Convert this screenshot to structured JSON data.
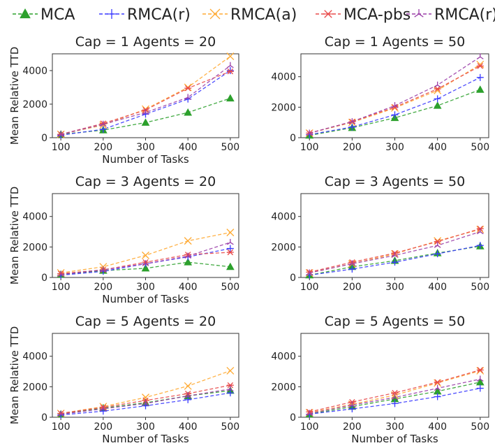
{
  "legend": [
    {
      "name": "MCA",
      "color": "#2ca02c",
      "marker": "triangle"
    },
    {
      "name": "RMCA(r)",
      "color": "#3b3bff",
      "marker": "plus"
    },
    {
      "name": "RMCA(a)",
      "color": "#ffaa33",
      "marker": "x"
    },
    {
      "name": "MCA-pbs",
      "color": "#e84a4a",
      "marker": "star"
    },
    {
      "name": "RMCA(r)-pbs",
      "color": "#9b3fa8",
      "marker": "tri"
    }
  ],
  "chart_data": [
    {
      "type": "line",
      "title": "Cap = 1 Agents = 20",
      "xlabel": "Number of Tasks",
      "ylabel": "Mean Relative TTD",
      "x": [
        100,
        200,
        300,
        400,
        500
      ],
      "ylim": [
        0,
        5000
      ],
      "yticks": [
        0,
        2000,
        4000
      ],
      "series": [
        {
          "name": "MCA",
          "values": [
            200,
            450,
            900,
            1500,
            2350
          ]
        },
        {
          "name": "RMCA(r)",
          "values": [
            150,
            500,
            1400,
            2300,
            4000
          ]
        },
        {
          "name": "RMCA(a)",
          "values": [
            200,
            750,
            1700,
            3000,
            4850
          ]
        },
        {
          "name": "MCA-pbs",
          "values": [
            200,
            850,
            1650,
            2950,
            3950
          ]
        },
        {
          "name": "RMCA(r)-pbs",
          "values": [
            200,
            800,
            1500,
            2400,
            4300
          ]
        }
      ]
    },
    {
      "type": "line",
      "title": "Cap = 1 Agents = 50",
      "xlabel": "",
      "ylabel": "",
      "x": [
        100,
        200,
        300,
        400,
        500
      ],
      "ylim": [
        0,
        5500
      ],
      "yticks": [
        0,
        2000,
        4000
      ],
      "series": [
        {
          "name": "MCA",
          "values": [
            150,
            650,
            1300,
            2100,
            3150
          ]
        },
        {
          "name": "RMCA(r)",
          "values": [
            200,
            700,
            1500,
            2550,
            3950
          ]
        },
        {
          "name": "RMCA(a)",
          "values": [
            300,
            1000,
            1950,
            3100,
            4800
          ]
        },
        {
          "name": "MCA-pbs",
          "values": [
            300,
            1050,
            2000,
            3200,
            4700
          ]
        },
        {
          "name": "RMCA(r)-pbs",
          "values": [
            300,
            1050,
            2100,
            3450,
            5300
          ]
        }
      ]
    },
    {
      "type": "line",
      "title": "Cap = 3 Agents = 20",
      "xlabel": "Number of Tasks",
      "ylabel": "Mean Relative TTD",
      "x": [
        100,
        200,
        300,
        400,
        500
      ],
      "ylim": [
        0,
        5500
      ],
      "yticks": [
        0,
        2000,
        4000
      ],
      "series": [
        {
          "name": "MCA",
          "values": [
            200,
            450,
            600,
            1000,
            700
          ]
        },
        {
          "name": "RMCA(r)",
          "values": [
            150,
            400,
            900,
            1350,
            1900
          ]
        },
        {
          "name": "RMCA(a)",
          "values": [
            300,
            700,
            1450,
            2400,
            2950
          ]
        },
        {
          "name": "MCA-pbs",
          "values": [
            250,
            500,
            1000,
            1500,
            1650
          ]
        },
        {
          "name": "RMCA(r)-pbs",
          "values": [
            200,
            500,
            900,
            1400,
            2300
          ]
        }
      ]
    },
    {
      "type": "line",
      "title": "Cap = 3 Agents = 50",
      "xlabel": "",
      "ylabel": "",
      "x": [
        100,
        200,
        300,
        400,
        500
      ],
      "ylim": [
        0,
        5500
      ],
      "yticks": [
        0,
        2000,
        4000
      ],
      "series": [
        {
          "name": "MCA",
          "values": [
            150,
            700,
            1100,
            1600,
            2050
          ]
        },
        {
          "name": "RMCA(r)",
          "values": [
            150,
            550,
            1000,
            1550,
            2100
          ]
        },
        {
          "name": "RMCA(a)",
          "values": [
            300,
            900,
            1550,
            2400,
            3150
          ]
        },
        {
          "name": "MCA-pbs",
          "values": [
            350,
            1000,
            1600,
            2350,
            3200
          ]
        },
        {
          "name": "RMCA(r)-pbs",
          "values": [
            300,
            900,
            1450,
            2100,
            3000
          ]
        }
      ]
    },
    {
      "type": "line",
      "title": "Cap = 5 Agents = 20",
      "xlabel": "Number of Tasks",
      "ylabel": "Mean Relative TTD",
      "x": [
        100,
        200,
        300,
        400,
        500
      ],
      "ylim": [
        0,
        5500
      ],
      "yticks": [
        0,
        2000,
        4000
      ],
      "series": [
        {
          "name": "MCA",
          "values": [
            200,
            600,
            950,
            1400,
            1750
          ]
        },
        {
          "name": "RMCA(r)",
          "values": [
            150,
            400,
            750,
            1150,
            1600
          ]
        },
        {
          "name": "RMCA(a)",
          "values": [
            250,
            700,
            1300,
            2050,
            3050
          ]
        },
        {
          "name": "MCA-pbs",
          "values": [
            250,
            650,
            1100,
            1550,
            2100
          ]
        },
        {
          "name": "RMCA(r)-pbs",
          "values": [
            200,
            550,
            900,
            1400,
            1850
          ]
        }
      ]
    },
    {
      "type": "line",
      "title": "Cap = 5 Agents = 50",
      "xlabel": "Number of Tasks",
      "ylabel": "",
      "x": [
        100,
        200,
        300,
        400,
        500
      ],
      "ylim": [
        0,
        5500
      ],
      "yticks": [
        0,
        2000,
        4000
      ],
      "series": [
        {
          "name": "MCA",
          "values": [
            200,
            700,
            1200,
            1700,
            2300
          ]
        },
        {
          "name": "RMCA(r)",
          "values": [
            200,
            550,
            900,
            1350,
            1900
          ]
        },
        {
          "name": "RMCA(a)",
          "values": [
            300,
            850,
            1450,
            2250,
            3050
          ]
        },
        {
          "name": "MCA-pbs",
          "values": [
            350,
            1000,
            1600,
            2300,
            3100
          ]
        },
        {
          "name": "RMCA(r)-pbs",
          "values": [
            250,
            800,
            1300,
            1900,
            2500
          ]
        }
      ]
    }
  ]
}
